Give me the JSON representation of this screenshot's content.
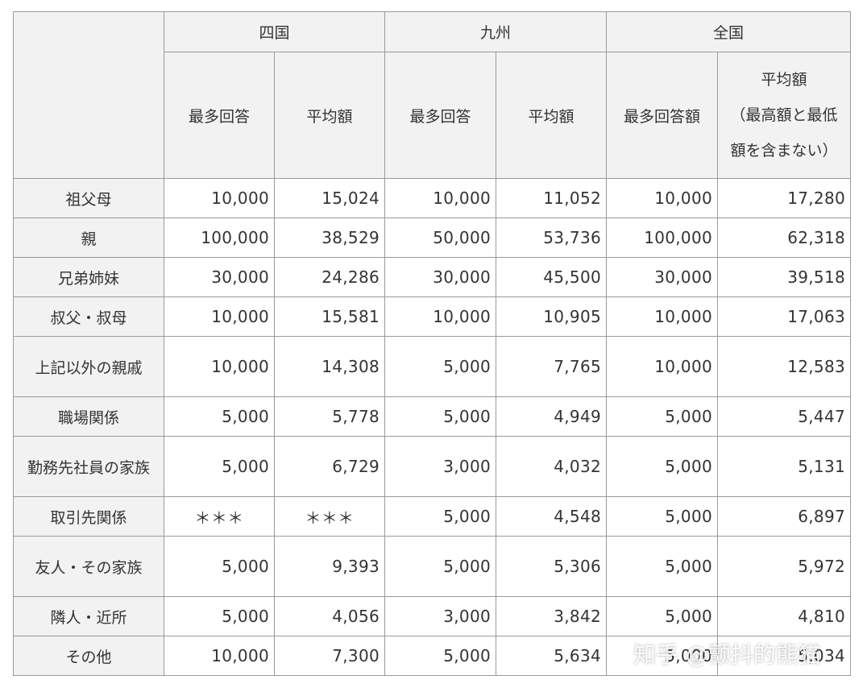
{
  "header": {
    "regions": [
      "四国",
      "九州",
      "全国"
    ],
    "sub": [
      "最多回答",
      "平均額",
      "最多回答",
      "平均額",
      "最多回答額"
    ],
    "avg_all_lines": [
      "平均額",
      "（最高額と最低",
      "額を含まない）"
    ]
  },
  "rows": [
    {
      "label": "祖父母",
      "vals": [
        "10,000",
        "15,024",
        "10,000",
        "11,052",
        "10,000",
        "17,280"
      ]
    },
    {
      "label": "親",
      "vals": [
        "100,000",
        "38,529",
        "50,000",
        "53,736",
        "100,000",
        "62,318"
      ]
    },
    {
      "label": "兄弟姉妹",
      "vals": [
        "30,000",
        "24,286",
        "30,000",
        "45,500",
        "30,000",
        "39,518"
      ]
    },
    {
      "label": "叔父・叔母",
      "vals": [
        "10,000",
        "15,581",
        "10,000",
        "10,905",
        "10,000",
        "17,063"
      ]
    },
    {
      "label": "上記以外の親戚",
      "vals": [
        "10,000",
        "14,308",
        "5,000",
        "7,765",
        "10,000",
        "12,583"
      ]
    },
    {
      "label": "職場関係",
      "vals": [
        "5,000",
        "5,778",
        "5,000",
        "4,949",
        "5,000",
        "5,447"
      ]
    },
    {
      "label": "勤務先社員の家族",
      "vals": [
        "5,000",
        "6,729",
        "3,000",
        "4,032",
        "5,000",
        "5,131"
      ]
    },
    {
      "label": "取引先関係",
      "vals": [
        "＊＊＊",
        "＊＊＊",
        "5,000",
        "4,548",
        "5,000",
        "6,897"
      ]
    },
    {
      "label": "友人・その家族",
      "vals": [
        "5,000",
        "9,393",
        "5,000",
        "5,306",
        "5,000",
        "5,972"
      ]
    },
    {
      "label": "隣人・近所",
      "vals": [
        "5,000",
        "4,056",
        "3,000",
        "3,842",
        "5,000",
        "4,810"
      ]
    },
    {
      "label": "その他",
      "vals": [
        "10,000",
        "7,300",
        "5,000",
        "5,634",
        "5,000",
        "5,034"
      ]
    }
  ],
  "watermark": "知乎 @颤抖的熊猫"
}
